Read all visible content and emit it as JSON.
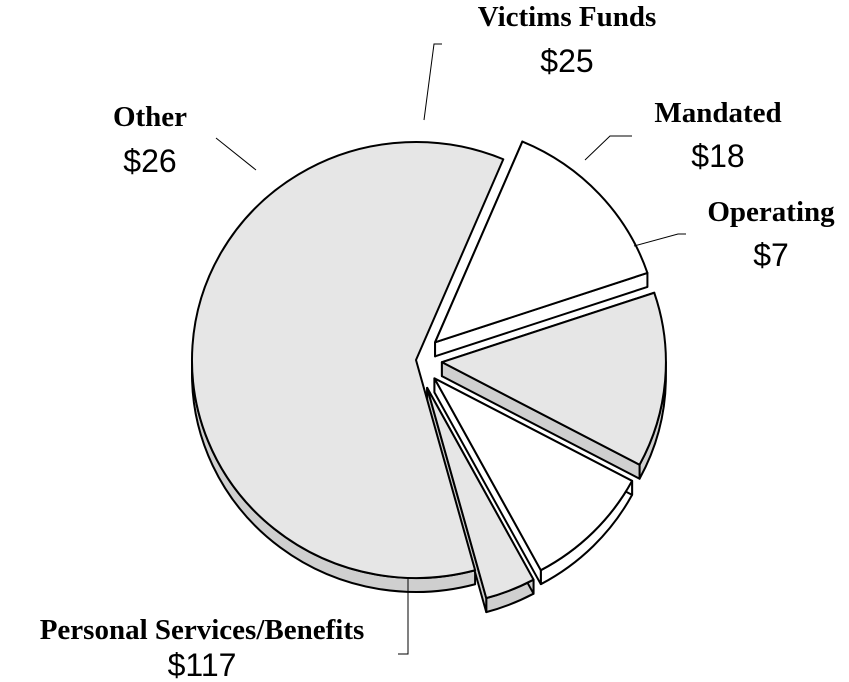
{
  "chart_data": {
    "type": "pie",
    "style": "3d-exploded",
    "title": "",
    "slices": [
      {
        "label": "Personal Services/Benefits",
        "value": 117,
        "value_label": "$117",
        "color": "#e6e6e6",
        "side_color": "#cfcfcf"
      },
      {
        "label": "Other",
        "value": 26,
        "value_label": "$26",
        "color": "#ffffff",
        "side_color": "#ffffff"
      },
      {
        "label": "Victims Funds",
        "value": 25,
        "value_label": "$25",
        "color": "#e6e6e6",
        "side_color": "#cfcfcf"
      },
      {
        "label": "Mandated",
        "value": 18,
        "value_label": "$18",
        "color": "#ffffff",
        "side_color": "#ffffff"
      },
      {
        "label": "Operating",
        "value": 7,
        "value_label": "$7",
        "color": "#e6e6e6",
        "side_color": "#cfcfcf"
      }
    ]
  }
}
